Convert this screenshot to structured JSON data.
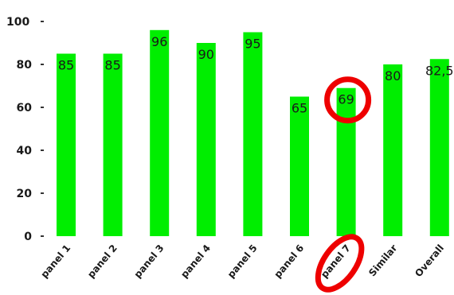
{
  "chart_data": {
    "type": "bar",
    "title": "",
    "xlabel": "",
    "ylabel": "",
    "ylim": [
      0,
      100
    ],
    "y_ticks": [
      0,
      20,
      40,
      60,
      80,
      100
    ],
    "y_tick_labels": [
      "0",
      "20",
      "40",
      "60",
      "80",
      "100"
    ],
    "grid": false,
    "categories": [
      "panel 1",
      "panel 2",
      "panel 3",
      "panel 4",
      "panel 5",
      "panel 6",
      "panel 7",
      "Similar",
      "Overall"
    ],
    "values": [
      85,
      85,
      96,
      90,
      95,
      65,
      69,
      80,
      82.5
    ],
    "data_labels": [
      "85",
      "85",
      "96",
      "90",
      "95",
      "65",
      "69",
      "80",
      "82,5"
    ],
    "bar_color": "#00ee00",
    "annotations": [
      {
        "type": "circle",
        "target": "value-label",
        "index": 6,
        "color": "#ee0000"
      },
      {
        "type": "ellipse",
        "target": "category-label",
        "index": 6,
        "color": "#ee0000"
      }
    ]
  }
}
